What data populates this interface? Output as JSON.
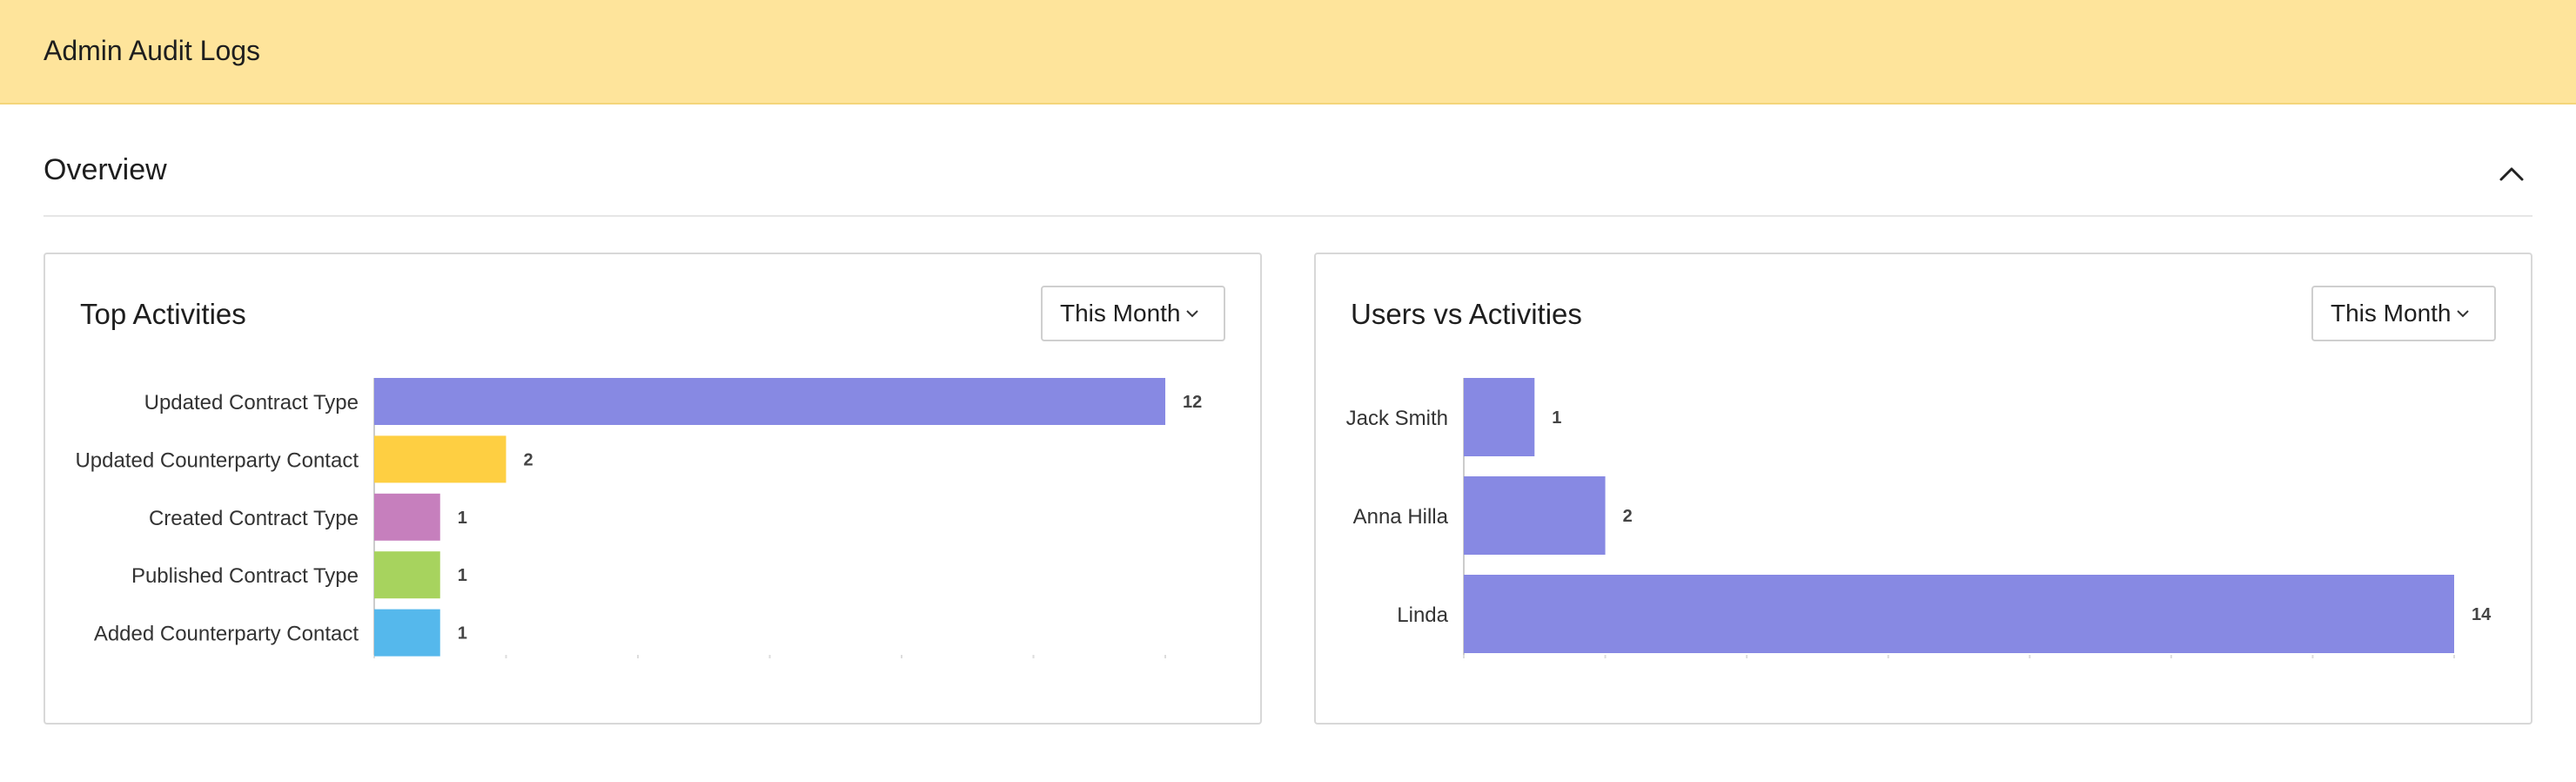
{
  "header": {
    "title": "Admin Audit Logs"
  },
  "overview": {
    "title": "Overview",
    "collapse_icon": "chevron-up-icon"
  },
  "panels": {
    "top_activities": {
      "title": "Top Activities",
      "period": "This Month"
    },
    "users_vs_activities": {
      "title": "Users vs Activities",
      "period": "This Month"
    }
  },
  "chart_data": [
    {
      "type": "bar",
      "orientation": "horizontal",
      "title": "Top Activities",
      "categories": [
        "Updated Contract Type",
        "Updated Counterparty Contact",
        "Created Contract Type",
        "Published Contract Type",
        "Added Counterparty Contact"
      ],
      "values": [
        12,
        2,
        1,
        1,
        1
      ],
      "colors": [
        "#8789e3",
        "#fecf42",
        "#c67fbd",
        "#a7d35e",
        "#55b8ec"
      ],
      "xlim": [
        0,
        12
      ],
      "grid": false
    },
    {
      "type": "bar",
      "orientation": "horizontal",
      "title": "Users vs Activities",
      "categories": [
        "Jack Smith",
        "Anna Hilla",
        "Linda"
      ],
      "values": [
        1,
        2,
        14
      ],
      "colors": [
        "#8789e3",
        "#8789e3",
        "#8789e3"
      ],
      "xlim": [
        0,
        14
      ],
      "grid": false
    }
  ]
}
